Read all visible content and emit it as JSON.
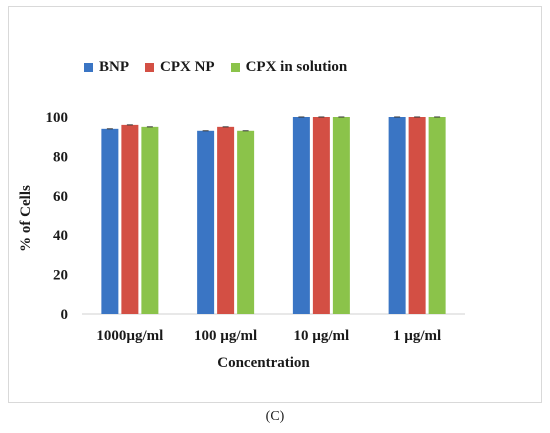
{
  "caption": "(C)",
  "chart_data": {
    "type": "bar",
    "title": "",
    "xlabel": "Concentration",
    "ylabel": "% of Cells",
    "ylim": [
      0,
      100
    ],
    "yticks": [
      0,
      20,
      40,
      60,
      80,
      100
    ],
    "grid": false,
    "legend_position": "top",
    "categories": [
      "1000µg/ml",
      "100 µg/ml",
      "10 µg/ml",
      "1 µg/ml"
    ],
    "series": [
      {
        "name": "BNP",
        "color": "#3a75c4",
        "values": [
          94,
          93,
          100,
          100
        ]
      },
      {
        "name": "CPX NP",
        "color": "#d34f44",
        "values": [
          96,
          95,
          100,
          100
        ]
      },
      {
        "name": "CPX in solution",
        "color": "#8bc34a",
        "values": [
          95,
          93,
          100,
          100
        ]
      }
    ]
  }
}
